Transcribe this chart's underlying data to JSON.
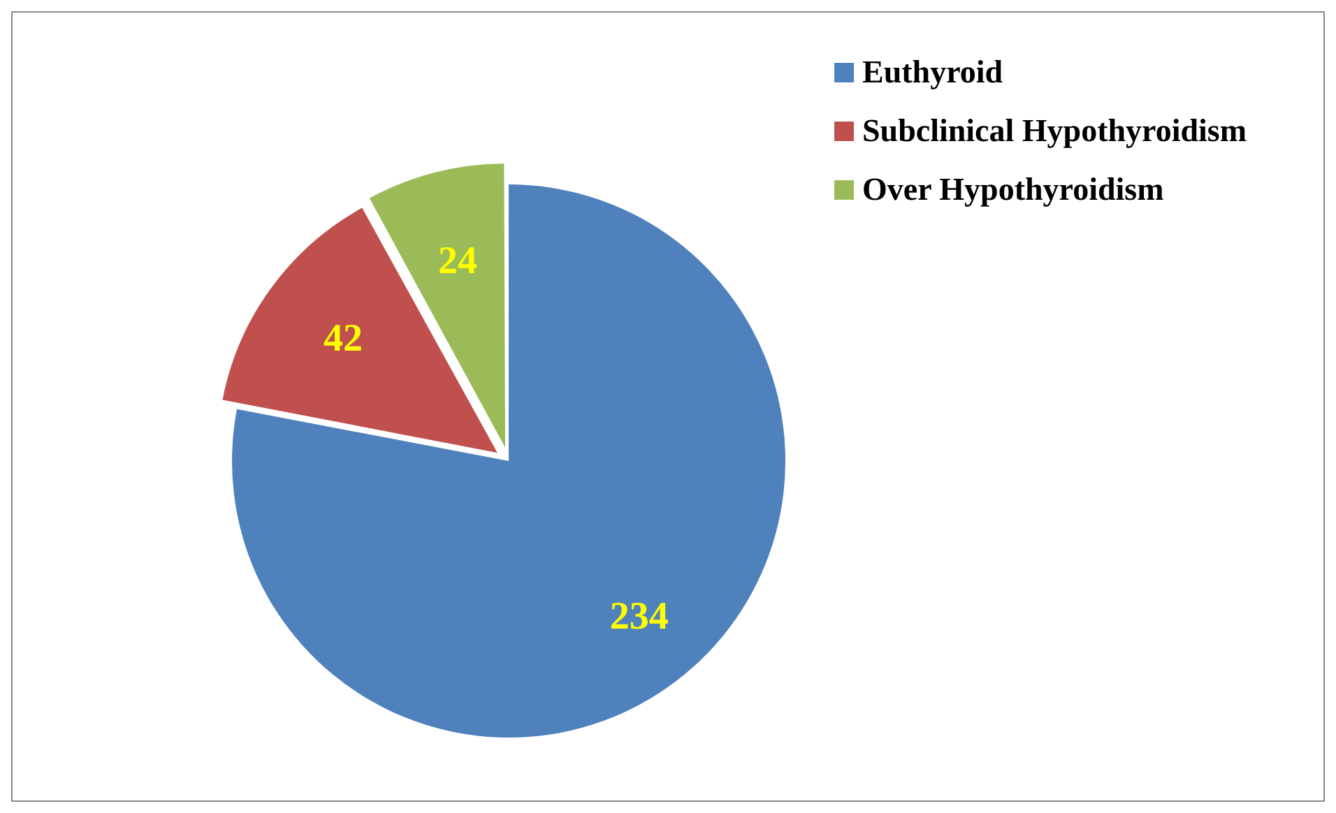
{
  "chart_data": {
    "type": "pie",
    "categories": [
      "Euthyroid",
      "Subclinical Hypothyroidism",
      "Over Hypothyroidism"
    ],
    "values": [
      234,
      42,
      24
    ],
    "colors": [
      "#4f81bd",
      "#c0504d",
      "#9bbb59"
    ],
    "data_labels": true,
    "legend": "top right"
  }
}
